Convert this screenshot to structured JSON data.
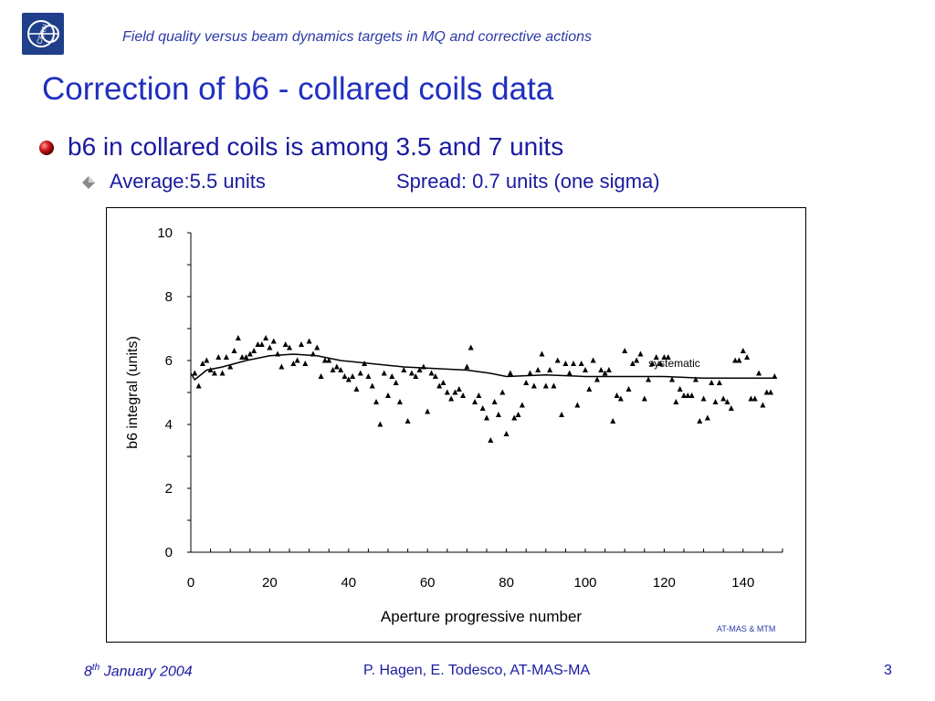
{
  "header": {
    "subtitle": "Field quality versus beam dynamics targets in MQ and corrective actions"
  },
  "slide": {
    "title": "Correction of b6 - collared coils data",
    "bullet1": "b6 in collared coils is among 3.5 and 7 units",
    "bullet2_left": "Average:5.5 units",
    "bullet2_right": "Spread: 0.7 units (one sigma)"
  },
  "footer": {
    "date_day": "8",
    "date_sup": "th",
    "date_rest": " January 2004",
    "authors": "P. Hagen, E. Todesco, AT-MAS-MA",
    "page": "3"
  },
  "logo": {
    "text": "CERN"
  },
  "colors": {
    "title": "#1f2fc0",
    "text": "#1a1aa0",
    "logo_bg": "#1f3f8a",
    "credit": "#2b3aa8"
  },
  "chart_data": {
    "type": "scatter",
    "xlabel": "Aperture progressive number",
    "ylabel": "b6 integral (units)",
    "xlim": [
      0,
      150
    ],
    "ylim": [
      0,
      10
    ],
    "xticks": [
      0,
      20,
      40,
      60,
      80,
      100,
      120,
      140
    ],
    "yticks": [
      0,
      2,
      4,
      6,
      8,
      10
    ],
    "annotation": "systematic",
    "credit": "AT-MAS & MTM",
    "grid": false,
    "series": [
      {
        "marker": "triangle",
        "points": [
          [
            1,
            5.6
          ],
          [
            2,
            5.2
          ],
          [
            3,
            5.9
          ],
          [
            4,
            6.0
          ],
          [
            5,
            5.7
          ],
          [
            6,
            5.6
          ],
          [
            7,
            6.1
          ],
          [
            8,
            5.6
          ],
          [
            9,
            6.1
          ],
          [
            10,
            5.8
          ],
          [
            11,
            6.3
          ],
          [
            12,
            6.7
          ],
          [
            13,
            6.1
          ],
          [
            14,
            6.1
          ],
          [
            15,
            6.2
          ],
          [
            16,
            6.3
          ],
          [
            17,
            6.5
          ],
          [
            18,
            6.5
          ],
          [
            19,
            6.7
          ],
          [
            20,
            6.4
          ],
          [
            21,
            6.6
          ],
          [
            22,
            6.2
          ],
          [
            23,
            5.8
          ],
          [
            24,
            6.5
          ],
          [
            25,
            6.4
          ],
          [
            26,
            5.9
          ],
          [
            27,
            6.0
          ],
          [
            28,
            6.5
          ],
          [
            29,
            5.9
          ],
          [
            30,
            6.6
          ],
          [
            31,
            6.2
          ],
          [
            32,
            6.4
          ],
          [
            33,
            5.5
          ],
          [
            34,
            6.0
          ],
          [
            35,
            6.0
          ],
          [
            36,
            5.7
          ],
          [
            37,
            5.8
          ],
          [
            38,
            5.7
          ],
          [
            39,
            5.5
          ],
          [
            40,
            5.4
          ],
          [
            41,
            5.5
          ],
          [
            42,
            5.1
          ],
          [
            43,
            5.6
          ],
          [
            44,
            5.9
          ],
          [
            45,
            5.5
          ],
          [
            46,
            5.2
          ],
          [
            47,
            4.7
          ],
          [
            48,
            4.0
          ],
          [
            49,
            5.6
          ],
          [
            50,
            4.9
          ],
          [
            51,
            5.5
          ],
          [
            52,
            5.3
          ],
          [
            53,
            4.7
          ],
          [
            54,
            5.7
          ],
          [
            55,
            4.1
          ],
          [
            56,
            5.6
          ],
          [
            57,
            5.5
          ],
          [
            58,
            5.7
          ],
          [
            59,
            5.8
          ],
          [
            60,
            4.4
          ],
          [
            61,
            5.6
          ],
          [
            62,
            5.5
          ],
          [
            63,
            5.2
          ],
          [
            64,
            5.3
          ],
          [
            65,
            5.0
          ],
          [
            66,
            4.8
          ],
          [
            67,
            5.0
          ],
          [
            68,
            5.1
          ],
          [
            69,
            4.9
          ],
          [
            70,
            5.8
          ],
          [
            71,
            6.4
          ],
          [
            72,
            4.7
          ],
          [
            73,
            4.9
          ],
          [
            74,
            4.5
          ],
          [
            75,
            4.2
          ],
          [
            76,
            3.5
          ],
          [
            77,
            4.7
          ],
          [
            78,
            4.3
          ],
          [
            79,
            5.0
          ],
          [
            80,
            3.7
          ],
          [
            81,
            5.6
          ],
          [
            82,
            4.2
          ],
          [
            83,
            4.3
          ],
          [
            84,
            4.6
          ],
          [
            85,
            5.3
          ],
          [
            86,
            5.6
          ],
          [
            87,
            5.2
          ],
          [
            88,
            5.7
          ],
          [
            89,
            6.2
          ],
          [
            90,
            5.2
          ],
          [
            91,
            5.7
          ],
          [
            92,
            5.2
          ],
          [
            93,
            6.0
          ],
          [
            94,
            4.3
          ],
          [
            95,
            5.9
          ],
          [
            96,
            5.6
          ],
          [
            97,
            5.9
          ],
          [
            98,
            4.6
          ],
          [
            99,
            5.9
          ],
          [
            100,
            5.7
          ],
          [
            101,
            5.1
          ],
          [
            102,
            6.0
          ],
          [
            103,
            5.4
          ],
          [
            104,
            5.7
          ],
          [
            105,
            5.6
          ],
          [
            106,
            5.7
          ],
          [
            107,
            4.1
          ],
          [
            108,
            4.9
          ],
          [
            109,
            4.8
          ],
          [
            110,
            6.3
          ],
          [
            111,
            5.1
          ],
          [
            112,
            5.9
          ],
          [
            113,
            6.0
          ],
          [
            114,
            6.2
          ],
          [
            115,
            4.8
          ],
          [
            116,
            5.4
          ],
          [
            117,
            5.9
          ],
          [
            118,
            6.1
          ],
          [
            119,
            5.9
          ],
          [
            120,
            6.1
          ],
          [
            121,
            6.1
          ],
          [
            122,
            5.4
          ],
          [
            123,
            4.7
          ],
          [
            124,
            5.1
          ],
          [
            125,
            4.9
          ],
          [
            126,
            4.9
          ],
          [
            127,
            4.9
          ],
          [
            128,
            5.4
          ],
          [
            129,
            4.1
          ],
          [
            130,
            4.8
          ],
          [
            131,
            4.2
          ],
          [
            132,
            5.3
          ],
          [
            133,
            4.7
          ],
          [
            134,
            5.3
          ],
          [
            135,
            4.8
          ],
          [
            136,
            4.7
          ],
          [
            137,
            4.5
          ],
          [
            138,
            6.0
          ],
          [
            139,
            6.0
          ],
          [
            140,
            6.3
          ],
          [
            141,
            6.1
          ],
          [
            142,
            4.8
          ],
          [
            143,
            4.8
          ],
          [
            144,
            5.6
          ],
          [
            145,
            4.6
          ],
          [
            146,
            5.0
          ],
          [
            147,
            5.0
          ],
          [
            148,
            5.5
          ]
        ]
      },
      {
        "marker": "line",
        "points": [
          [
            0,
            5.6
          ],
          [
            1,
            5.4
          ],
          [
            4,
            5.7
          ],
          [
            8,
            5.8
          ],
          [
            14,
            6.0
          ],
          [
            20,
            6.15
          ],
          [
            26,
            6.2
          ],
          [
            32,
            6.15
          ],
          [
            38,
            6.0
          ],
          [
            46,
            5.9
          ],
          [
            54,
            5.8
          ],
          [
            62,
            5.75
          ],
          [
            70,
            5.7
          ],
          [
            76,
            5.6
          ],
          [
            80,
            5.5
          ],
          [
            90,
            5.55
          ],
          [
            100,
            5.5
          ],
          [
            110,
            5.5
          ],
          [
            120,
            5.5
          ],
          [
            130,
            5.45
          ],
          [
            140,
            5.45
          ],
          [
            148,
            5.45
          ]
        ]
      }
    ]
  }
}
